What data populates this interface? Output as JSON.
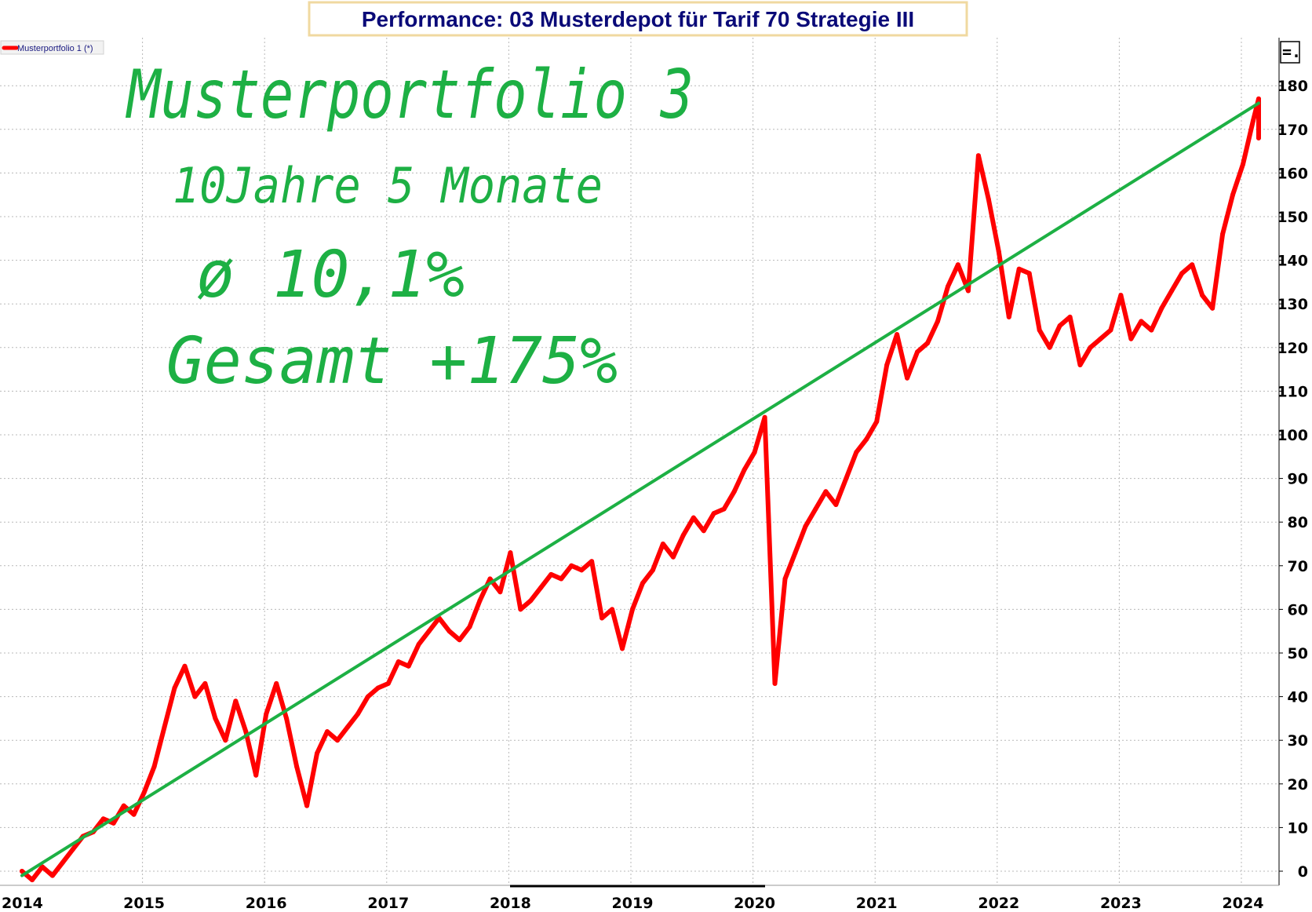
{
  "title": "Performance: 03 Musterdepot für Tarif 70 Strategie III",
  "legend": {
    "label": "Musterportfolio 1 (*)"
  },
  "menu_button": {
    "glyph": "=.",
    "icon": "menu-icon"
  },
  "annotations": [
    "Musterportfolio 3",
    "10Jahre 5 Monate",
    "ø 10,1%",
    "Gesamt +175%"
  ],
  "colors": {
    "series": "#ff0000",
    "trend": "#1db044",
    "annotation": "#1db044",
    "title": "#0a0a78",
    "title_box_border": "#f0d9a0",
    "grid": "#b8b8b8"
  },
  "chart_data": {
    "type": "line",
    "title": "Performance: 03 Musterdepot für Tarif 70 Strategie III",
    "xlabel": "",
    "ylabel": "",
    "x_ticks": [
      "2014",
      "2015",
      "2016",
      "2017",
      "2018",
      "2019",
      "2020",
      "2021",
      "2022",
      "2023",
      "2024"
    ],
    "y_ticks": [
      0,
      10,
      20,
      30,
      40,
      50,
      60,
      70,
      80,
      90,
      100,
      110,
      120,
      130,
      140,
      150,
      160,
      170,
      180
    ],
    "xlim": [
      "2014-01",
      "2024-05"
    ],
    "ylim": [
      -4,
      186
    ],
    "grid": true,
    "legend_position": "top-left",
    "y_axis_side": "right",
    "series": [
      {
        "name": "Musterportfolio 1 (*)",
        "color": "#ff0000",
        "points": [
          [
            "2014-01",
            0
          ],
          [
            "2014-02",
            -2
          ],
          [
            "2014-03",
            1
          ],
          [
            "2014-04",
            -1
          ],
          [
            "2014-05",
            2
          ],
          [
            "2014-06",
            5
          ],
          [
            "2014-07",
            8
          ],
          [
            "2014-08",
            9
          ],
          [
            "2014-09",
            12
          ],
          [
            "2014-10",
            11
          ],
          [
            "2014-11",
            15
          ],
          [
            "2014-12",
            13
          ],
          [
            "2015-01",
            18
          ],
          [
            "2015-02",
            24
          ],
          [
            "2015-03",
            33
          ],
          [
            "2015-04",
            42
          ],
          [
            "2015-05",
            47
          ],
          [
            "2015-06",
            40
          ],
          [
            "2015-07",
            43
          ],
          [
            "2015-08",
            35
          ],
          [
            "2015-09",
            30
          ],
          [
            "2015-10",
            39
          ],
          [
            "2015-11",
            32
          ],
          [
            "2015-12",
            22
          ],
          [
            "2016-01",
            36
          ],
          [
            "2016-02",
            43
          ],
          [
            "2016-03",
            35
          ],
          [
            "2016-04",
            24
          ],
          [
            "2016-05",
            15
          ],
          [
            "2016-06",
            27
          ],
          [
            "2016-07",
            32
          ],
          [
            "2016-08",
            30
          ],
          [
            "2016-09",
            33
          ],
          [
            "2016-10",
            36
          ],
          [
            "2016-11",
            40
          ],
          [
            "2016-12",
            42
          ],
          [
            "2017-01",
            43
          ],
          [
            "2017-02",
            48
          ],
          [
            "2017-03",
            47
          ],
          [
            "2017-04",
            52
          ],
          [
            "2017-05",
            55
          ],
          [
            "2017-06",
            58
          ],
          [
            "2017-07",
            55
          ],
          [
            "2017-08",
            53
          ],
          [
            "2017-09",
            56
          ],
          [
            "2017-10",
            62
          ],
          [
            "2017-11",
            67
          ],
          [
            "2017-12",
            64
          ],
          [
            "2018-01",
            73
          ],
          [
            "2018-02",
            60
          ],
          [
            "2018-03",
            62
          ],
          [
            "2018-04",
            65
          ],
          [
            "2018-05",
            68
          ],
          [
            "2018-06",
            67
          ],
          [
            "2018-07",
            70
          ],
          [
            "2018-08",
            69
          ],
          [
            "2018-09",
            71
          ],
          [
            "2018-10",
            58
          ],
          [
            "2018-11",
            60
          ],
          [
            "2018-12",
            51
          ],
          [
            "2019-01",
            60
          ],
          [
            "2019-02",
            66
          ],
          [
            "2019-03",
            69
          ],
          [
            "2019-04",
            75
          ],
          [
            "2019-05",
            72
          ],
          [
            "2019-06",
            77
          ],
          [
            "2019-07",
            81
          ],
          [
            "2019-08",
            78
          ],
          [
            "2019-09",
            82
          ],
          [
            "2019-10",
            83
          ],
          [
            "2019-11",
            87
          ],
          [
            "2019-12",
            92
          ],
          [
            "2020-01",
            96
          ],
          [
            "2020-02",
            104
          ],
          [
            "2020-03",
            43
          ],
          [
            "2020-04",
            67
          ],
          [
            "2020-05",
            73
          ],
          [
            "2020-06",
            79
          ],
          [
            "2020-07",
            83
          ],
          [
            "2020-08",
            87
          ],
          [
            "2020-09",
            84
          ],
          [
            "2020-10",
            90
          ],
          [
            "2020-11",
            96
          ],
          [
            "2020-12",
            99
          ],
          [
            "2021-01",
            103
          ],
          [
            "2021-02",
            116
          ],
          [
            "2021-03",
            123
          ],
          [
            "2021-04",
            113
          ],
          [
            "2021-05",
            119
          ],
          [
            "2021-06",
            121
          ],
          [
            "2021-07",
            126
          ],
          [
            "2021-08",
            134
          ],
          [
            "2021-09",
            139
          ],
          [
            "2021-10",
            133
          ],
          [
            "2021-11",
            164
          ],
          [
            "2021-12",
            154
          ],
          [
            "2022-01",
            142
          ],
          [
            "2022-02",
            127
          ],
          [
            "2022-03",
            138
          ],
          [
            "2022-04",
            137
          ],
          [
            "2022-05",
            124
          ],
          [
            "2022-06",
            120
          ],
          [
            "2022-07",
            125
          ],
          [
            "2022-08",
            127
          ],
          [
            "2022-09",
            116
          ],
          [
            "2022-10",
            120
          ],
          [
            "2022-11",
            122
          ],
          [
            "2022-12",
            124
          ],
          [
            "2023-01",
            132
          ],
          [
            "2023-02",
            122
          ],
          [
            "2023-03",
            126
          ],
          [
            "2023-04",
            124
          ],
          [
            "2023-05",
            129
          ],
          [
            "2023-06",
            133
          ],
          [
            "2023-07",
            137
          ],
          [
            "2023-08",
            139
          ],
          [
            "2023-09",
            132
          ],
          [
            "2023-10",
            129
          ],
          [
            "2023-11",
            146
          ],
          [
            "2023-12",
            155
          ],
          [
            "2024-01",
            162
          ],
          [
            "2024-02",
            172
          ],
          [
            "2024-03",
            177
          ],
          [
            "2024-04",
            168
          ],
          [
            "2024-05",
            174
          ]
        ]
      },
      {
        "color": "#1db044",
        "points": [
          [
            "2014-01",
            -1
          ],
          [
            "2024-05",
            176
          ]
        ]
      }
    ]
  }
}
